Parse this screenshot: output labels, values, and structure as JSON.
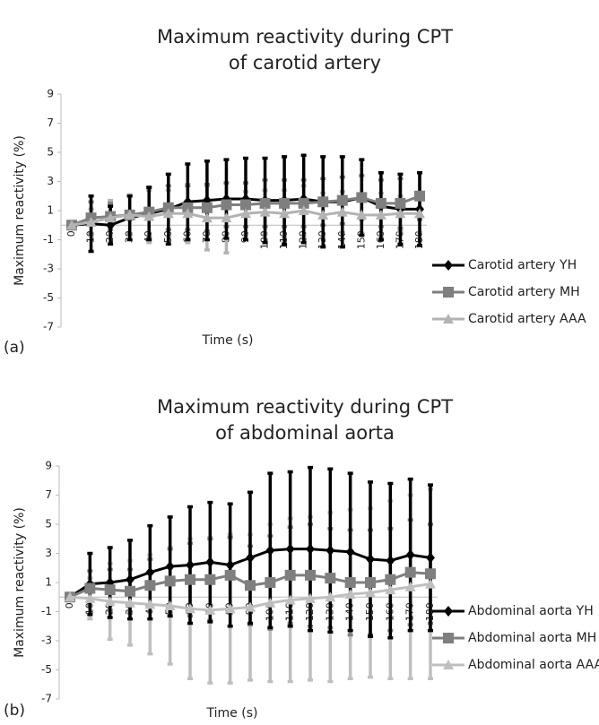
{
  "chart_data": [
    {
      "type": "line",
      "panel": "(a)",
      "title": [
        "Maximum reactivity during CPT",
        "of carotid artery"
      ],
      "y_label": "Maximum reactivity (%)",
      "x_label": "Time (s)",
      "categories": [
        "0",
        "10",
        "20",
        "30",
        "40",
        "50",
        "60",
        "70",
        "80",
        "90",
        "100",
        "110",
        "120",
        "130",
        "140",
        "150",
        "160",
        "170",
        "180"
      ],
      "ylim": [
        -7,
        9
      ],
      "yticks": [
        -7,
        -5,
        -3,
        -1,
        1,
        3,
        5,
        7,
        9
      ],
      "legend": "right",
      "series": [
        {
          "name": "Carotid artery YH",
          "color": "#000000",
          "marker": "diamond",
          "values": [
            0,
            0.1,
            0,
            0.5,
            0.8,
            1.1,
            1.6,
            1.7,
            1.8,
            1.8,
            1.7,
            1.7,
            1.8,
            1.6,
            1.6,
            1.9,
            1.3,
            1.1,
            1.1
          ],
          "errors": [
            0,
            1.9,
            1.3,
            1.5,
            1.8,
            2.4,
            2.6,
            2.7,
            2.7,
            2.8,
            2.9,
            3.0,
            3.0,
            3.1,
            3.1,
            2.6,
            2.3,
            2.4,
            2.5
          ]
        },
        {
          "name": "Carotid artery MH",
          "color": "#7f7f7f",
          "marker": "square",
          "values": [
            0,
            0.5,
            0.6,
            0.7,
            0.9,
            1.2,
            1.2,
            1.2,
            1.4,
            1.4,
            1.5,
            1.5,
            1.5,
            1.6,
            1.7,
            1.9,
            1.5,
            1.5,
            2.0
          ],
          "errors": [
            0,
            1.1,
            0.9,
            1.3,
            1.7,
            1.5,
            1.5,
            1.6,
            1.5,
            1.5,
            1.6,
            1.6,
            1.6,
            1.6,
            1.6,
            1.5,
            1.6,
            1.7,
            1.6
          ]
        },
        {
          "name": "Carotid artery AAA",
          "color": "#b3b3b3",
          "marker": "triangle",
          "values": [
            0,
            0.2,
            0.5,
            0.7,
            0.6,
            0.8,
            0.8,
            0.5,
            0.5,
            0.8,
            0.9,
            0.8,
            1.0,
            0.7,
            0.9,
            0.7,
            0.7,
            0.8,
            0.8
          ],
          "errors": [
            0,
            0.9,
            1.2,
            1.4,
            1.8,
            1.6,
            2.0,
            2.2,
            2.4,
            1.5,
            1.5,
            1.6,
            1.7,
            1.5,
            1.4,
            1.3,
            1.5,
            1.2,
            1.3
          ]
        }
      ]
    },
    {
      "type": "line",
      "panel": "(b)",
      "title": [
        "Maximum reactivity during CPT",
        "of abdominal aorta"
      ],
      "y_label": "Maximum reactivity (%)",
      "x_label": "Time (s)",
      "categories": [
        "0",
        "10",
        "20",
        "30",
        "40",
        "50",
        "60",
        "70",
        "80",
        "90",
        "100",
        "110",
        "120",
        "130",
        "140",
        "150",
        "160",
        "170",
        "180"
      ],
      "ylim": [
        -7,
        9
      ],
      "yticks": [
        -7,
        -5,
        -3,
        -1,
        1,
        3,
        5,
        7,
        9
      ],
      "legend": "right",
      "series": [
        {
          "name": "Abdominal aorta YH",
          "color": "#000000",
          "marker": "diamond",
          "values": [
            0,
            0.9,
            1.0,
            1.2,
            1.7,
            2.1,
            2.2,
            2.4,
            2.2,
            2.7,
            3.2,
            3.3,
            3.3,
            3.2,
            3.1,
            2.6,
            2.5,
            2.9,
            2.7
          ],
          "errors": [
            0,
            2.1,
            2.4,
            2.7,
            3.2,
            3.4,
            4.0,
            4.1,
            4.2,
            4.5,
            5.3,
            5.3,
            5.6,
            5.6,
            5.4,
            5.3,
            5.3,
            5.2,
            5.0
          ]
        },
        {
          "name": "Abdominal aorta MH",
          "color": "#7f7f7f",
          "marker": "square",
          "values": [
            0,
            0.6,
            0.5,
            0.4,
            0.8,
            1.1,
            1.2,
            1.2,
            1.5,
            0.8,
            1.0,
            1.5,
            1.5,
            1.3,
            1.0,
            1.0,
            1.2,
            1.7,
            1.6
          ],
          "errors": [
            0,
            1.2,
            1.4,
            1.5,
            1.8,
            2.2,
            2.5,
            2.8,
            2.6,
            2.7,
            3.2,
            3.3,
            3.5,
            3.4,
            3.6,
            3.6,
            3.5,
            3.6,
            3.4
          ]
        },
        {
          "name": "Abdominal aorta AAA",
          "color": "#bfbfbf",
          "marker": "triangle",
          "values": [
            0,
            -0.1,
            -0.3,
            -0.4,
            -0.5,
            -0.6,
            -0.8,
            -0.9,
            -0.8,
            -0.7,
            -0.4,
            -0.2,
            -0.1,
            0.0,
            0.2,
            0.3,
            0.5,
            0.7,
            0.9
          ],
          "errors": [
            0,
            1.4,
            2.6,
            2.9,
            3.4,
            4.0,
            4.8,
            5.0,
            5.1,
            5.0,
            5.4,
            5.6,
            5.6,
            5.8,
            5.8,
            5.8,
            6.1,
            6.3,
            6.5
          ]
        }
      ]
    }
  ]
}
